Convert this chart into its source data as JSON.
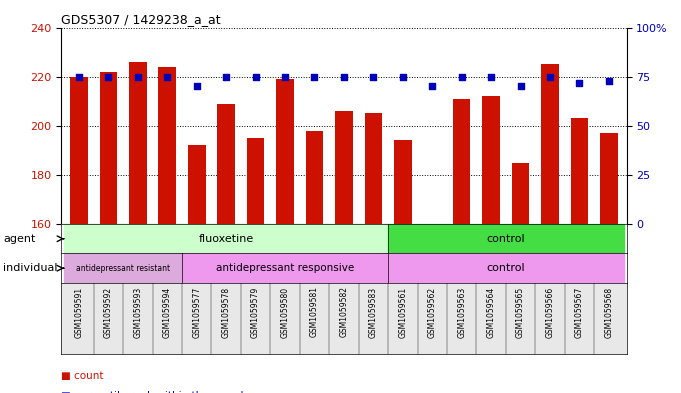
{
  "title": "GDS5307 / 1429238_a_at",
  "samples": [
    "GSM1059591",
    "GSM1059592",
    "GSM1059593",
    "GSM1059594",
    "GSM1059577",
    "GSM1059578",
    "GSM1059579",
    "GSM1059580",
    "GSM1059581",
    "GSM1059582",
    "GSM1059583",
    "GSM1059561",
    "GSM1059562",
    "GSM1059563",
    "GSM1059564",
    "GSM1059565",
    "GSM1059566",
    "GSM1059567",
    "GSM1059568"
  ],
  "counts": [
    220,
    222,
    226,
    224,
    192,
    209,
    195,
    219,
    198,
    206,
    205,
    194,
    160,
    211,
    212,
    185,
    225,
    203,
    197
  ],
  "percentiles": [
    75,
    75,
    75,
    75,
    70,
    75,
    75,
    75,
    75,
    75,
    75,
    75,
    70,
    75,
    75,
    70,
    75,
    72,
    73
  ],
  "ylim_left": [
    160,
    240
  ],
  "ylim_right": [
    0,
    100
  ],
  "yticks_left": [
    160,
    180,
    200,
    220,
    240
  ],
  "yticks_right": [
    0,
    25,
    50,
    75,
    100
  ],
  "ytick_labels_right": [
    "0",
    "25",
    "50",
    "75",
    "100%"
  ],
  "bar_color": "#cc1100",
  "dot_color": "#0000bb",
  "flu_color": "#ccffcc",
  "ctrl_color": "#44dd44",
  "res_color": "#ddaadd",
  "resp_color": "#ee99ee",
  "ctrl2_color": "#ee99ee",
  "plot_bg": "#ffffff"
}
